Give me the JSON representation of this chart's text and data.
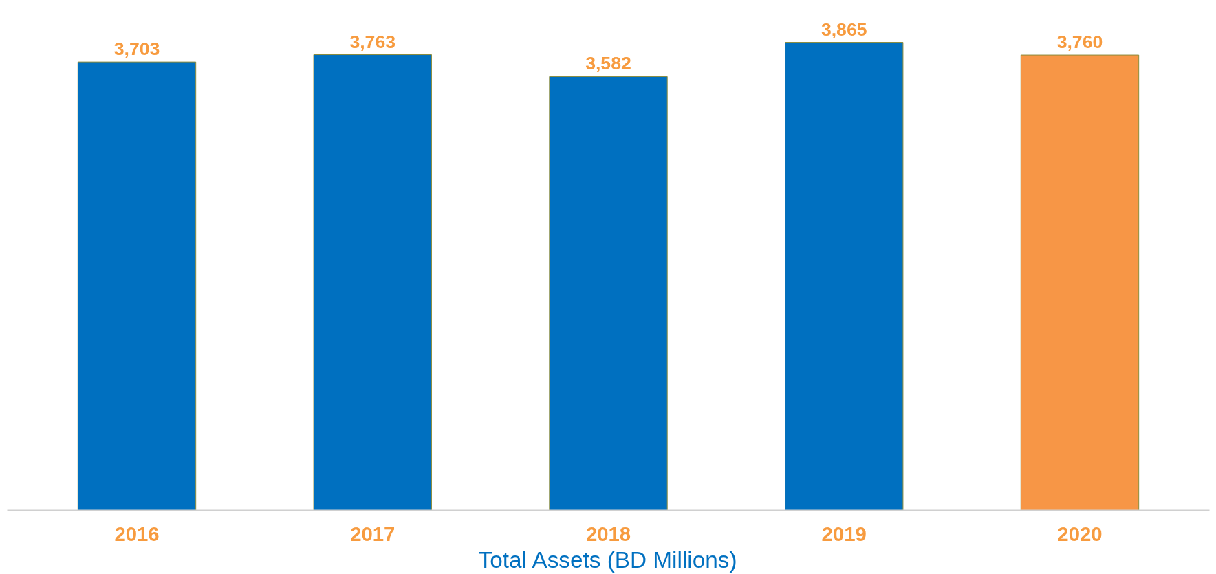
{
  "chart_data": {
    "type": "bar",
    "xlabel": "Total Assets (BD Millions)",
    "categories": [
      "2016",
      "2017",
      "2018",
      "2019",
      "2020"
    ],
    "values": [
      3703,
      3763,
      3582,
      3865,
      3760
    ],
    "colors": [
      "#0070c0",
      "#0070c0",
      "#0070c0",
      "#0070c0",
      "#f79646"
    ],
    "value_labels": [
      "3,703",
      "3,763",
      "3,582",
      "3,865",
      "3,760"
    ],
    "grid": false,
    "tick_labels": "x"
  }
}
